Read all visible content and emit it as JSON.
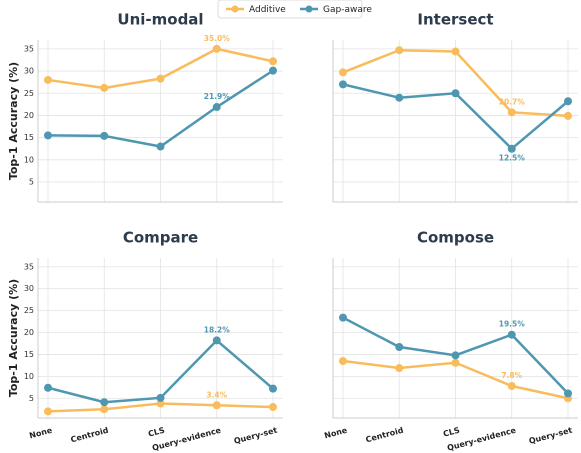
{
  "chart_data": [
    {
      "type": "line",
      "title": "Uni-modal",
      "ylabel": "Top-1 Accuracy (%)",
      "ylim": [
        0.5,
        37
      ],
      "yticks": [
        5,
        10,
        15,
        20,
        25,
        30,
        35
      ],
      "grid": true,
      "series": [
        {
          "name": "Additive",
          "color": "#f9bc5c",
          "values": [
            28.0,
            26.2,
            28.3,
            35.0,
            32.2
          ],
          "value_labels": [
            null,
            null,
            null,
            "35.0%",
            null
          ]
        },
        {
          "name": "Gap-aware",
          "color": "#4f97b1",
          "values": [
            15.5,
            15.4,
            13.0,
            21.9,
            30.1
          ],
          "value_labels": [
            null,
            null,
            null,
            "21.9%",
            null
          ]
        }
      ]
    },
    {
      "type": "line",
      "title": "Intersect",
      "grid": true,
      "series": [
        {
          "color": "#f9bc5c",
          "values": [
            29.7,
            34.7,
            34.4,
            20.7,
            19.9
          ],
          "value_labels": [
            null,
            null,
            null,
            "20.7%",
            null
          ]
        },
        {
          "color": "#4f97b1",
          "values": [
            27.0,
            24.0,
            25.0,
            12.5,
            23.2
          ],
          "value_labels": [
            null,
            null,
            null,
            "12.5%",
            null
          ]
        }
      ]
    },
    {
      "type": "line",
      "title": "Compare",
      "ylabel": "Top-1 Accuracy (%)",
      "ylim": [
        0.5,
        37
      ],
      "yticks": [
        5,
        10,
        15,
        20,
        25,
        30,
        35
      ],
      "grid": true,
      "categories": [
        "None",
        "Centroid",
        "CLS",
        "Query-evidence",
        "Query-set"
      ],
      "series": [
        {
          "color": "#f9bc5c",
          "values": [
            2.0,
            2.5,
            3.8,
            3.4,
            3.0
          ],
          "value_labels": [
            null,
            null,
            null,
            "3.4%",
            null
          ]
        },
        {
          "color": "#4f97b1",
          "values": [
            7.4,
            4.1,
            5.1,
            18.2,
            7.2
          ],
          "value_labels": [
            null,
            null,
            null,
            "18.2%",
            null
          ]
        }
      ]
    },
    {
      "type": "line",
      "title": "Compose",
      "grid": true,
      "categories": [
        "None",
        "Centroid",
        "CLS",
        "Query-evidence",
        "Query-set"
      ],
      "series": [
        {
          "color": "#f9bc5c",
          "values": [
            13.5,
            11.9,
            13.1,
            7.8,
            5.0
          ],
          "value_labels": [
            null,
            null,
            null,
            "7.8%",
            null
          ]
        },
        {
          "color": "#4f97b1",
          "values": [
            23.4,
            16.7,
            14.8,
            19.5,
            6.1
          ],
          "value_labels": [
            null,
            null,
            null,
            "19.5%",
            null
          ]
        }
      ]
    }
  ]
}
